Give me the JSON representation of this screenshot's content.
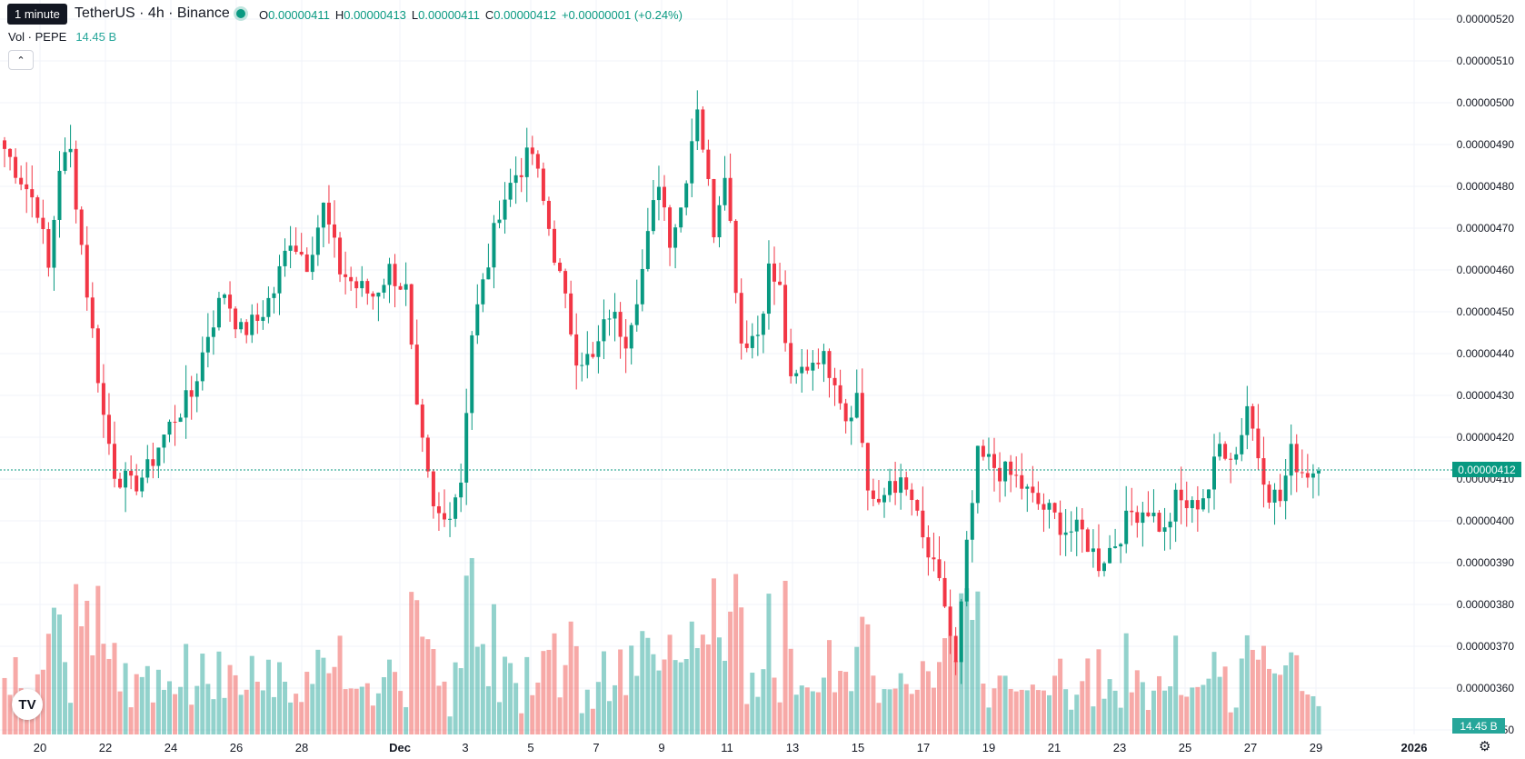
{
  "header": {
    "tooltip": "1 minute",
    "symbol": "TetherUS · 4h · Binance",
    "ohlc": [
      {
        "k": "O",
        "v": "0.00000411"
      },
      {
        "k": "H",
        "v": "0.00000413"
      },
      {
        "k": "L",
        "v": "0.00000411"
      },
      {
        "k": "C",
        "v": "0.00000412"
      },
      {
        "k": "",
        "v": "+0.00000001 (+0.24%)"
      }
    ]
  },
  "volume_legend": {
    "label": "Vol · PEPE",
    "value": "14.45 B"
  },
  "collapse_icon": "chevron-up-icon",
  "price_axis": {
    "labels": [
      "0.00000520",
      "0.00000510",
      "0.00000500",
      "0.00000490",
      "0.00000480",
      "0.00000470",
      "0.00000460",
      "0.00000450",
      "0.00000440",
      "0.00000430",
      "0.00000420",
      "0.00000410",
      "0.00000400",
      "0.00000390",
      "0.00000380",
      "0.00000370",
      "0.00000360",
      "0.00000350"
    ],
    "current_price": "0.00000412",
    "volume_tag": "14.45 B"
  },
  "time_axis": {
    "labels": [
      "20",
      "22",
      "24",
      "26",
      "28",
      "Dec",
      "3",
      "5",
      "7",
      "9",
      "11",
      "13",
      "15",
      "17",
      "19",
      "21",
      "23",
      "25",
      "27",
      "29",
      "2026"
    ]
  },
  "colors": {
    "up": "#089981",
    "down": "#f23645",
    "vol_up": "#26a69a",
    "vol_down": "#ef5350"
  },
  "logo_icon": "tradingview-logo-icon",
  "settings_icon": "gear-icon",
  "chart_data": {
    "type": "candlestick",
    "timeframe": "4h",
    "ylim": [
      3.5e-06,
      5.22e-06
    ],
    "anchors": [
      [
        0,
        4.89
      ],
      [
        3,
        4.82
      ],
      [
        6,
        4.75
      ],
      [
        8,
        4.6
      ],
      [
        10,
        4.85
      ],
      [
        12,
        4.88
      ],
      [
        15,
        4.55
      ],
      [
        18,
        4.25
      ],
      [
        20,
        4.12
      ],
      [
        23,
        4.08
      ],
      [
        26,
        4.12
      ],
      [
        28,
        4.18
      ],
      [
        31,
        4.25
      ],
      [
        34,
        4.3
      ],
      [
        37,
        4.45
      ],
      [
        40,
        4.55
      ],
      [
        43,
        4.45
      ],
      [
        46,
        4.48
      ],
      [
        49,
        4.55
      ],
      [
        52,
        4.68
      ],
      [
        55,
        4.62
      ],
      [
        58,
        4.75
      ],
      [
        61,
        4.6
      ],
      [
        64,
        4.56
      ],
      [
        67,
        4.54
      ],
      [
        70,
        4.6
      ],
      [
        73,
        4.55
      ],
      [
        75,
        4.25
      ],
      [
        78,
        4.02
      ],
      [
        80,
        4.0
      ],
      [
        83,
        4.1
      ],
      [
        85,
        4.45
      ],
      [
        88,
        4.62
      ],
      [
        90,
        4.75
      ],
      [
        93,
        4.83
      ],
      [
        96,
        4.88
      ],
      [
        99,
        4.7
      ],
      [
        102,
        4.52
      ],
      [
        104,
        4.4
      ],
      [
        107,
        4.38
      ],
      [
        110,
        4.5
      ],
      [
        113,
        4.44
      ],
      [
        116,
        4.6
      ],
      [
        119,
        4.82
      ],
      [
        121,
        4.68
      ],
      [
        123,
        4.75
      ],
      [
        126,
        5.0
      ],
      [
        129,
        4.7
      ],
      [
        131,
        4.85
      ],
      [
        134,
        4.43
      ],
      [
        137,
        4.45
      ],
      [
        139,
        4.6
      ],
      [
        141,
        4.55
      ],
      [
        143,
        4.32
      ],
      [
        145,
        4.36
      ],
      [
        148,
        4.4
      ],
      [
        151,
        4.35
      ],
      [
        153,
        4.25
      ],
      [
        155,
        4.3
      ],
      [
        157,
        4.08
      ],
      [
        159,
        4.02
      ],
      [
        161,
        4.1
      ],
      [
        163,
        4.08
      ],
      [
        165,
        4.05
      ],
      [
        167,
        3.95
      ],
      [
        169,
        3.88
      ],
      [
        171,
        3.8
      ],
      [
        173,
        3.65
      ],
      [
        175,
        3.93
      ],
      [
        177,
        4.15
      ],
      [
        179,
        4.14
      ],
      [
        181,
        4.12
      ],
      [
        184,
        4.1
      ],
      [
        187,
        4.05
      ],
      [
        190,
        4.02
      ],
      [
        193,
        3.98
      ],
      [
        196,
        3.97
      ],
      [
        199,
        3.9
      ],
      [
        202,
        3.95
      ],
      [
        205,
        4.02
      ],
      [
        208,
        4.03
      ],
      [
        211,
        3.97
      ],
      [
        213,
        4.05
      ],
      [
        216,
        4.03
      ],
      [
        219,
        4.08
      ],
      [
        221,
        4.18
      ],
      [
        224,
        4.16
      ],
      [
        226,
        4.28
      ],
      [
        228,
        4.16
      ],
      [
        230,
        4.07
      ],
      [
        232,
        4.05
      ],
      [
        234,
        4.16
      ],
      [
        236,
        4.12
      ],
      [
        238,
        4.12
      ]
    ]
  }
}
